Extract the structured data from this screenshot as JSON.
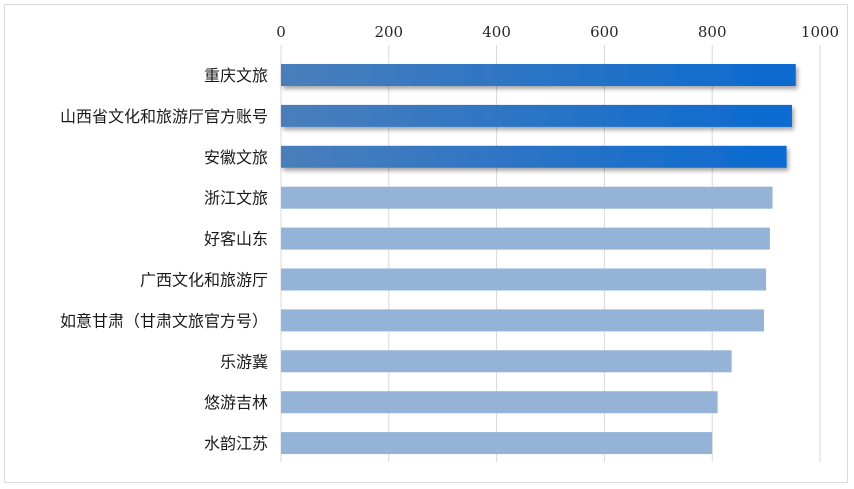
{
  "chart_data": {
    "type": "bar",
    "orientation": "horizontal",
    "title": "",
    "xlabel": "",
    "ylabel": "",
    "xlim": [
      0,
      1000
    ],
    "x_ticks": [
      0,
      200,
      400,
      600,
      800,
      1000
    ],
    "x_axis_position": "top",
    "grid": "vertical",
    "categories": [
      "重庆文旅",
      "山西省文化和旅游厅官方账号",
      "安徽文旅",
      "浙江文旅",
      "好客山东",
      "广西文化和旅游厅",
      "如意甘肃（甘肃文旅官方号）",
      "乐游冀",
      "悠游吉林",
      "水韵江苏"
    ],
    "values": [
      955,
      948,
      938,
      912,
      907,
      900,
      896,
      836,
      810,
      800
    ],
    "highlight_top": 3,
    "colors": {
      "highlight_start": "#4a7ebb",
      "highlight_end": "#0a6ad0",
      "normal": "#95b3d7",
      "grid": "#d9d9d9"
    }
  }
}
